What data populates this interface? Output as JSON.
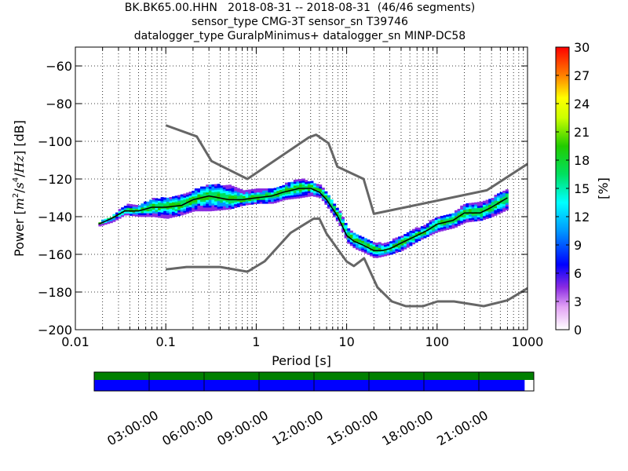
{
  "title_lines": [
    "BK.BK65.00.HHN   2018-08-31 -- 2018-08-31  (46/46 segments)",
    "sensor_type CMG-3T sensor_sn T39746",
    "datalogger_type GuralpMinimus+ datalogger_sn MINP-DC58"
  ],
  "chart_data": [
    {
      "type": "heatmap",
      "xlabel": "Period [s]",
      "ylabel": "Power [m²/s⁴/Hz] [dB]",
      "ylabel_parts": [
        "Power ",
        "m",
        "2",
        "/",
        "s",
        "4",
        "/",
        "Hz",
        " [dB]"
      ],
      "x_scale": "log",
      "xlim": [
        0.01,
        1000
      ],
      "ylim": [
        -200,
        -50
      ],
      "x_ticks": [
        0.01,
        0.1,
        1,
        10,
        100,
        1000
      ],
      "x_tick_labels": [
        "0.01",
        "0.1",
        "1",
        "10",
        "100",
        "1000"
      ],
      "y_ticks": [
        -200,
        -180,
        -160,
        -140,
        -120,
        -100,
        -80,
        -60
      ],
      "y_tick_labels": [
        "−200",
        "−180",
        "−160",
        "−140",
        "−120",
        "−100",
        "−80",
        "−60"
      ],
      "grid": true,
      "colorbar": {
        "label": "[%]",
        "range": [
          0,
          30
        ],
        "ticks": [
          0,
          3,
          6,
          9,
          12,
          15,
          18,
          21,
          24,
          27,
          30
        ],
        "tick_labels": [
          "0",
          "3",
          "6",
          "9",
          "12",
          "15",
          "18",
          "21",
          "24",
          "27",
          "30"
        ],
        "colormap": "pqlx"
      },
      "high_noise_model": {
        "x": [
          0.1,
          0.22,
          0.32,
          0.8,
          3.8,
          4.6,
          6.3,
          7.9,
          15.4,
          20,
          354.8,
          1000
        ],
        "y": [
          -91.5,
          -97.4,
          -110.5,
          -120,
          -98,
          -96.5,
          -101,
          -113.5,
          -120,
          -138.5,
          -126,
          -112
        ]
      },
      "low_noise_model": {
        "x": [
          0.1,
          0.17,
          0.4,
          0.8,
          1.24,
          2.4,
          4.3,
          5,
          6,
          10,
          12,
          15.6,
          21.9,
          31.6,
          45,
          70,
          101,
          154,
          328,
          600,
          1000
        ],
        "y": [
          -168,
          -166.7,
          -166.7,
          -169.2,
          -163.7,
          -148.6,
          -141.1,
          -141.1,
          -149,
          -163.8,
          -166.2,
          -162.1,
          -177.5,
          -185,
          -187.5,
          -187.5,
          -185,
          -185,
          -187.5,
          -184.4,
          -178
        ]
      },
      "mode_curve": {
        "x": [
          0.018,
          0.025,
          0.035,
          0.05,
          0.07,
          0.1,
          0.15,
          0.2,
          0.3,
          0.5,
          0.7,
          1,
          1.5,
          2,
          3,
          4,
          5,
          6,
          8,
          10,
          12,
          15,
          20,
          25,
          30,
          40,
          60,
          80,
          100,
          150,
          200,
          300,
          400,
          600
        ],
        "y": [
          -144,
          -141,
          -137,
          -137,
          -135,
          -135,
          -134,
          -131,
          -129,
          -131,
          -131,
          -130,
          -129,
          -127,
          -125,
          -125,
          -127,
          -131,
          -140,
          -150,
          -153,
          -155,
          -158,
          -158,
          -157,
          -154,
          -150,
          -147,
          -144,
          -142,
          -138,
          -138,
          -135,
          -130
        ]
      },
      "density_envelope": {
        "x": [
          0.018,
          0.025,
          0.035,
          0.05,
          0.07,
          0.1,
          0.15,
          0.2,
          0.3,
          0.5,
          0.7,
          1,
          1.5,
          2,
          3,
          4,
          5,
          6,
          8,
          10,
          12,
          15,
          20,
          25,
          30,
          40,
          60,
          80,
          100,
          150,
          200,
          300,
          400,
          600
        ],
        "y_low": [
          -145,
          -143,
          -139,
          -140,
          -140,
          -141,
          -139,
          -137,
          -137,
          -136,
          -134,
          -133,
          -133,
          -131,
          -130,
          -129,
          -130,
          -135,
          -144,
          -154,
          -157,
          -159,
          -162,
          -161,
          -160,
          -158,
          -153,
          -150,
          -148,
          -146,
          -143,
          -142,
          -140,
          -136
        ],
        "y_high": [
          -143,
          -140,
          -134,
          -134,
          -131,
          -130,
          -128,
          -126,
          -123,
          -124,
          -126,
          -126,
          -125,
          -123,
          -120,
          -122,
          -124,
          -128,
          -137,
          -146,
          -149,
          -151,
          -154,
          -155,
          -153,
          -150,
          -146,
          -143,
          -140,
          -138,
          -133,
          -133,
          -130,
          -125
        ]
      }
    },
    {
      "type": "timeline",
      "tick_labels": [
        "03:00:00",
        "06:00:00",
        "09:00:00",
        "12:00:00",
        "15:00:00",
        "18:00:00",
        "21:00:00"
      ],
      "data_coverage": {
        "start_hours": 0,
        "end_hours": 24,
        "color": "#008000"
      },
      "psd_coverage": {
        "start_hours": 0,
        "end_hours": 23.5,
        "color": "#0000ff"
      }
    }
  ],
  "colors": {
    "noise_model": "#666666",
    "mode_curve": "#000000",
    "grid": "#000000"
  }
}
